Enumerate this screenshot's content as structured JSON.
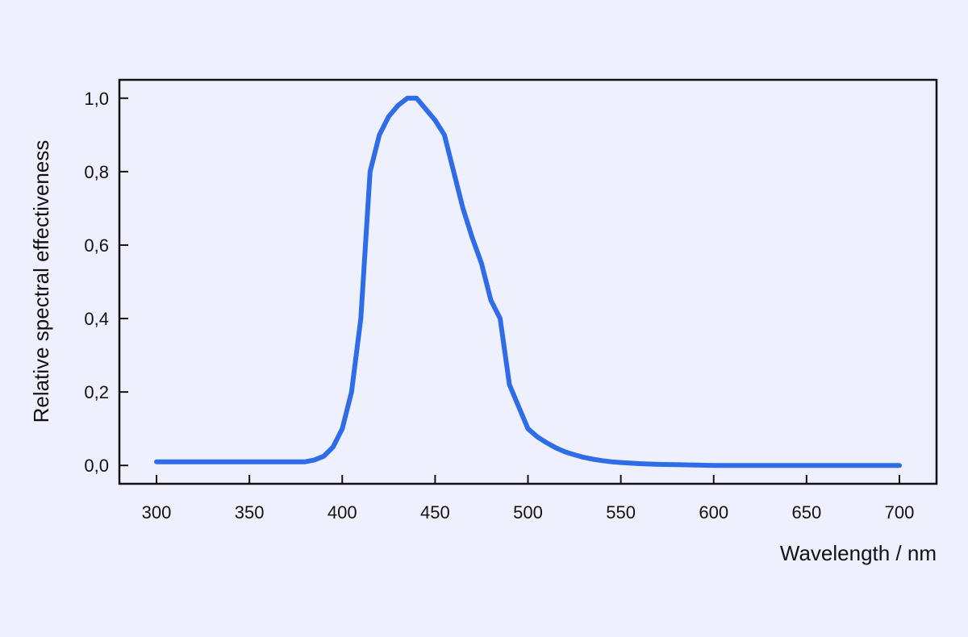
{
  "chart_data": {
    "type": "line",
    "title": "",
    "xlabel": "Wavelength / nm",
    "ylabel": "Relative spectral effectiveness",
    "xlim": [
      280,
      720
    ],
    "ylim": [
      -0.05,
      1.05
    ],
    "x_ticks": [
      300,
      350,
      400,
      450,
      500,
      550,
      600,
      650,
      700
    ],
    "x_tick_labels": [
      "300",
      "350",
      "400",
      "450",
      "500",
      "550",
      "600",
      "650",
      "700"
    ],
    "y_ticks": [
      0,
      0.2,
      0.4,
      0.6,
      0.8,
      1.0
    ],
    "y_tick_labels": [
      "0,0",
      "0,2",
      "0,4",
      "0,6",
      "0,8",
      "1,0"
    ],
    "grid": false,
    "line_color": "#2f6ce8",
    "background_color": "#eff0fd",
    "series": [
      {
        "x": [
          300,
          310,
          320,
          330,
          340,
          350,
          360,
          370,
          380,
          385,
          390,
          395,
          400,
          405,
          410,
          415,
          420,
          425,
          430,
          435,
          440,
          445,
          450,
          455,
          460,
          465,
          470,
          475,
          480,
          485,
          490,
          495,
          500,
          505,
          510,
          515,
          520,
          525,
          530,
          535,
          540,
          545,
          550,
          560,
          570,
          580,
          590,
          600,
          650,
          700
        ],
        "y": [
          0.01,
          0.01,
          0.01,
          0.01,
          0.01,
          0.01,
          0.01,
          0.01,
          0.01,
          0.015,
          0.025,
          0.05,
          0.1,
          0.2,
          0.4,
          0.8,
          0.9,
          0.95,
          0.98,
          1.0,
          1.0,
          0.97,
          0.94,
          0.9,
          0.8,
          0.7,
          0.62,
          0.55,
          0.45,
          0.4,
          0.22,
          0.16,
          0.1,
          0.078,
          0.062,
          0.048,
          0.037,
          0.029,
          0.022,
          0.017,
          0.013,
          0.01,
          0.008,
          0.005,
          0.003,
          0.002,
          0.001,
          0.0,
          0.0,
          0.0
        ]
      }
    ]
  }
}
